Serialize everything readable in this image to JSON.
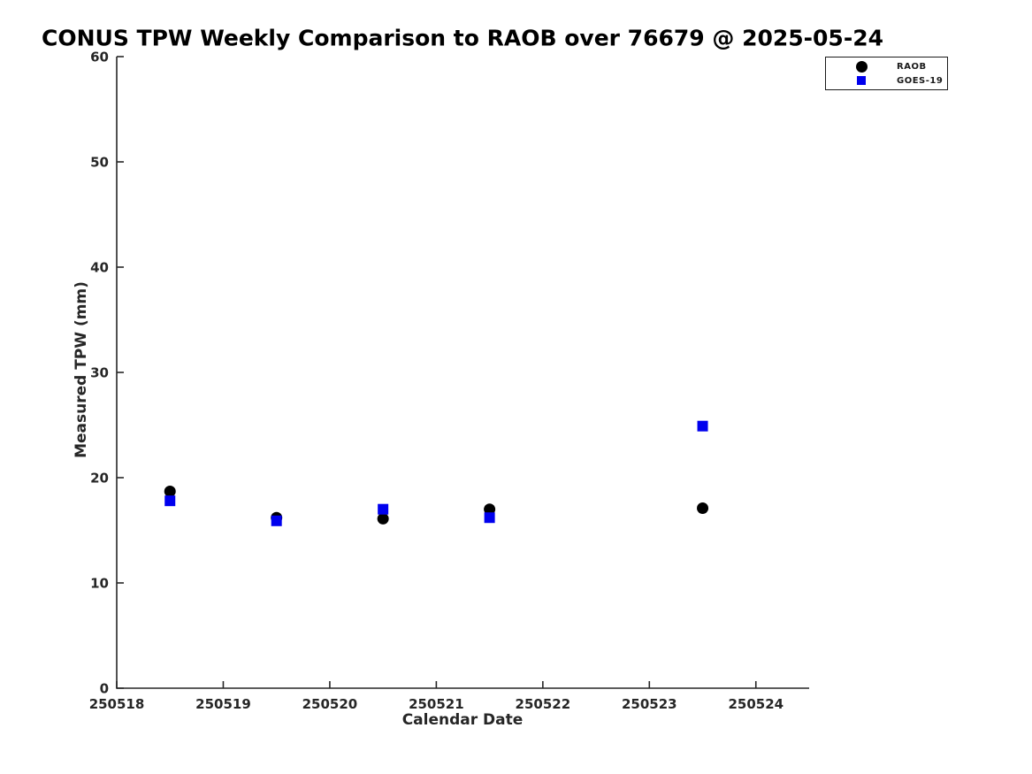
{
  "figure": {
    "background": "#ffffff"
  },
  "chart_data": {
    "type": "scatter",
    "title": "CONUS TPW Weekly Comparison to RAOB over 76679 @ 2025-05-24",
    "xlabel": "Calendar Date",
    "ylabel": "Measured TPW (mm)",
    "xlim": [
      250518,
      250524.5
    ],
    "ylim": [
      0,
      60
    ],
    "x_ticks": [
      250518,
      250519,
      250520,
      250521,
      250522,
      250523,
      250524
    ],
    "y_ticks": [
      0,
      10,
      20,
      30,
      40,
      50,
      60
    ],
    "grid": false,
    "legend_position": "top-right",
    "axis_color": "#262626",
    "series": [
      {
        "name": "RAOB",
        "marker": "circle",
        "color": "#000000",
        "x": [
          250518.5,
          250519.5,
          250520.5,
          250521.5,
          250523.5
        ],
        "y": [
          18.7,
          16.2,
          16.1,
          17.0,
          17.1
        ]
      },
      {
        "name": "GOES-19",
        "marker": "square",
        "color": "#0000ee",
        "x": [
          250518.5,
          250519.5,
          250520.5,
          250521.5,
          250523.5
        ],
        "y": [
          17.8,
          15.9,
          17.0,
          16.2,
          24.9
        ]
      }
    ]
  }
}
